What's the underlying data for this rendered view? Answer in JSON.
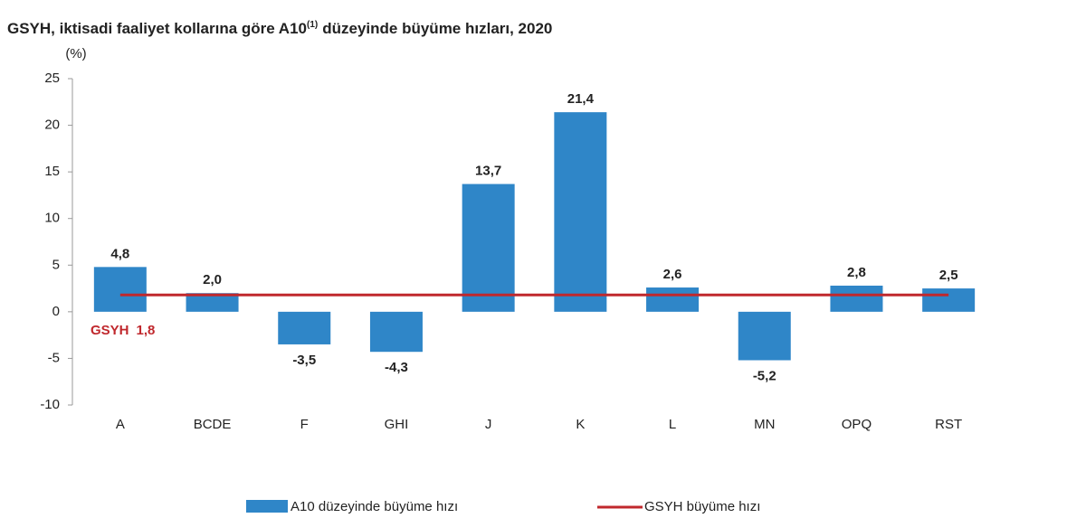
{
  "chart_data": {
    "type": "bar",
    "title": [
      "GSYH, iktisadi faaliyet kollarına göre A10",
      "(1)",
      "düzeyinde büyüme hızları, 2020"
    ],
    "y_unit": "(%)",
    "categories": [
      "A",
      "BCDE",
      "F",
      "GHI",
      "J",
      "K",
      "L",
      "MN",
      "OPQ",
      "RST"
    ],
    "series": [
      {
        "name": "A10 düzeyinde büyüme hızı",
        "color": "#2f86c8",
        "values": [
          4.8,
          2.0,
          -3.5,
          -4.3,
          13.7,
          21.4,
          2.6,
          -5.2,
          2.8,
          2.5
        ],
        "value_labels": [
          "4,8",
          "2,0",
          "-3,5",
          "-4,3",
          "13,7",
          "21,4",
          "2,6",
          "-5,2",
          "2,8",
          "2,5"
        ]
      }
    ],
    "reference_line": {
      "name": "GSYH büyüme hızı",
      "color": "#c0282d",
      "value": 1.8,
      "label": "GSYH",
      "value_label": "1,8"
    },
    "ylim": [
      -10,
      25
    ],
    "yticks": [
      -10,
      -5,
      0,
      5,
      10,
      15,
      20,
      25
    ]
  }
}
